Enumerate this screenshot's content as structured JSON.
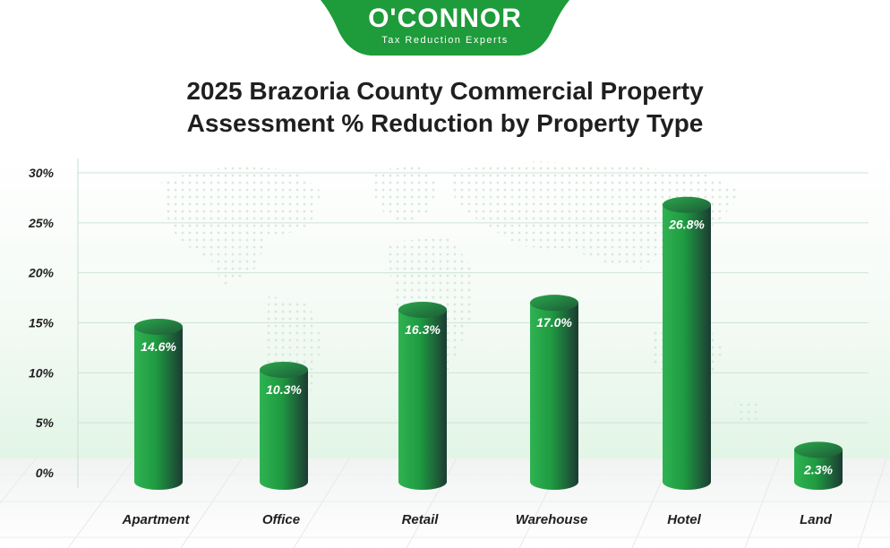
{
  "brand": {
    "name": "O'CONNOR",
    "tagline": "Tax Reduction Experts",
    "color": "#1e9b3a"
  },
  "chart_data": {
    "type": "bar",
    "title_lines": [
      "2025 Brazoria County Commercial Property",
      "Assessment % Reduction by Property Type"
    ],
    "categories": [
      "Apartment",
      "Office",
      "Retail",
      "Warehouse",
      "Hotel",
      "Land"
    ],
    "values": [
      14.6,
      10.3,
      16.3,
      17.0,
      26.8,
      2.3
    ],
    "data_labels": [
      "14.6%",
      "10.3%",
      "16.3%",
      "17.0%",
      "26.8%",
      "2.3%"
    ],
    "y_ticks": [
      "0%",
      "5%",
      "10%",
      "15%",
      "20%",
      "25%",
      "30%"
    ],
    "ylim": [
      0,
      30
    ],
    "grid": true,
    "legend": "none",
    "bar_color": "#22a447",
    "bar_shadow_color": "#1c3b33"
  }
}
